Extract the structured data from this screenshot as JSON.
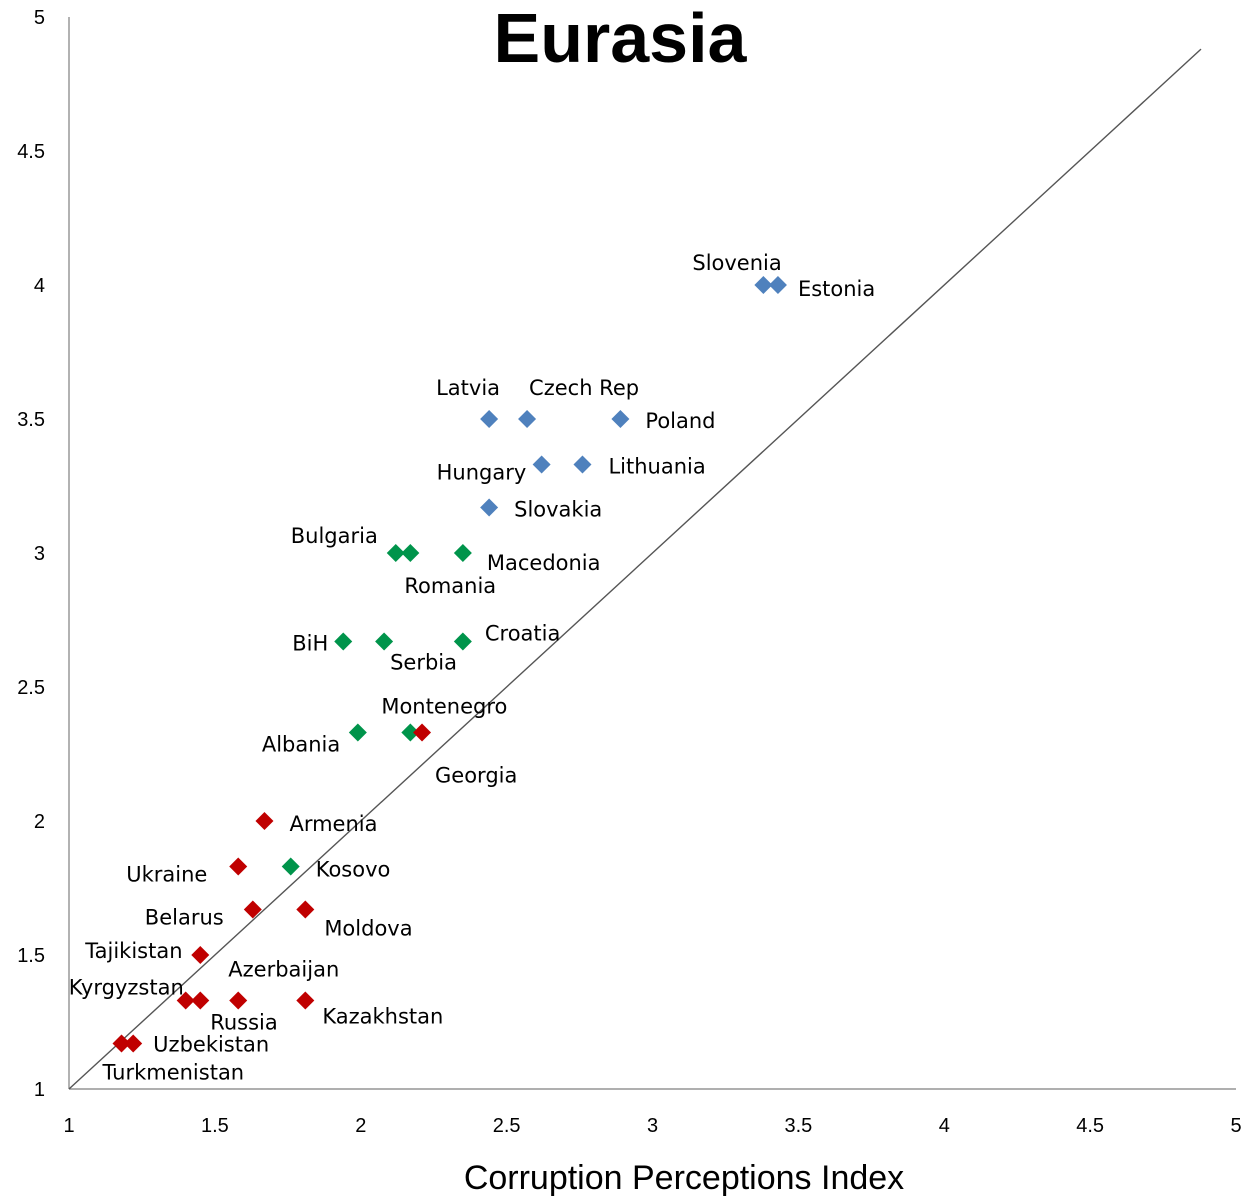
{
  "chart_data": {
    "type": "scatter",
    "title": "Eurasia",
    "xlabel": "Corruption Perceptions Index",
    "ylabel": "",
    "xlim": [
      1,
      5
    ],
    "ylim": [
      1,
      5
    ],
    "xticks": [
      "1",
      "1.5",
      "2",
      "2.5",
      "3",
      "3.5",
      "4",
      "4.5",
      "5"
    ],
    "yticks": [
      "1",
      "1.5",
      "2",
      "2.5",
      "3",
      "3.5",
      "4",
      "4.5",
      "5"
    ],
    "diagonal_line": true,
    "grid": false,
    "colors": {
      "blue": "#4f81bd",
      "green": "#00944b",
      "red": "#c00000"
    },
    "points": [
      {
        "label": "Slovenia",
        "x": 3.38,
        "y": 4.0,
        "color": "blue"
      },
      {
        "label": "Estonia",
        "x": 3.43,
        "y": 4.0,
        "color": "blue"
      },
      {
        "label": "Latvia",
        "x": 2.44,
        "y": 3.5,
        "color": "blue"
      },
      {
        "label": "Czech Rep",
        "x": 2.57,
        "y": 3.5,
        "color": "blue"
      },
      {
        "label": "Poland",
        "x": 2.89,
        "y": 3.5,
        "color": "blue"
      },
      {
        "label": "Hungary",
        "x": 2.62,
        "y": 3.33,
        "color": "blue"
      },
      {
        "label": "Lithuania",
        "x": 2.76,
        "y": 3.33,
        "color": "blue"
      },
      {
        "label": "Slovakia",
        "x": 2.44,
        "y": 3.17,
        "color": "blue"
      },
      {
        "label": "Bulgaria",
        "x": 2.12,
        "y": 3.0,
        "color": "green"
      },
      {
        "label": "Romania",
        "x": 2.17,
        "y": 3.0,
        "color": "green"
      },
      {
        "label": "Macedonia",
        "x": 2.35,
        "y": 3.0,
        "color": "green"
      },
      {
        "label": "BiH",
        "x": 1.94,
        "y": 2.67,
        "color": "green"
      },
      {
        "label": "Serbia",
        "x": 2.08,
        "y": 2.67,
        "color": "green"
      },
      {
        "label": "Croatia",
        "x": 2.35,
        "y": 2.67,
        "color": "green"
      },
      {
        "label": "Albania",
        "x": 1.99,
        "y": 2.33,
        "color": "green"
      },
      {
        "label": "Montenegro",
        "x": 2.17,
        "y": 2.33,
        "color": "green"
      },
      {
        "label": "Georgia",
        "x": 2.21,
        "y": 2.33,
        "color": "red"
      },
      {
        "label": "Armenia",
        "x": 1.67,
        "y": 2.0,
        "color": "red"
      },
      {
        "label": "Ukraine",
        "x": 1.58,
        "y": 1.83,
        "color": "red"
      },
      {
        "label": "Kosovo",
        "x": 1.76,
        "y": 1.83,
        "color": "green"
      },
      {
        "label": "Belarus",
        "x": 1.63,
        "y": 1.67,
        "color": "red"
      },
      {
        "label": "Moldova",
        "x": 1.81,
        "y": 1.67,
        "color": "red"
      },
      {
        "label": "Tajikistan",
        "x": 1.45,
        "y": 1.5,
        "color": "red"
      },
      {
        "label": "Kyrgyzstan",
        "x": 1.4,
        "y": 1.33,
        "color": "red"
      },
      {
        "label": "Azerbaijan",
        "x": 1.45,
        "y": 1.33,
        "color": "red"
      },
      {
        "label": "Russia",
        "x": 1.58,
        "y": 1.33,
        "color": "red"
      },
      {
        "label": "Kazakhstan",
        "x": 1.81,
        "y": 1.33,
        "color": "red"
      },
      {
        "label": "Turkmenistan",
        "x": 1.18,
        "y": 1.17,
        "color": "red"
      },
      {
        "label": "Uzbekistan",
        "x": 1.22,
        "y": 1.17,
        "color": "red"
      }
    ]
  }
}
